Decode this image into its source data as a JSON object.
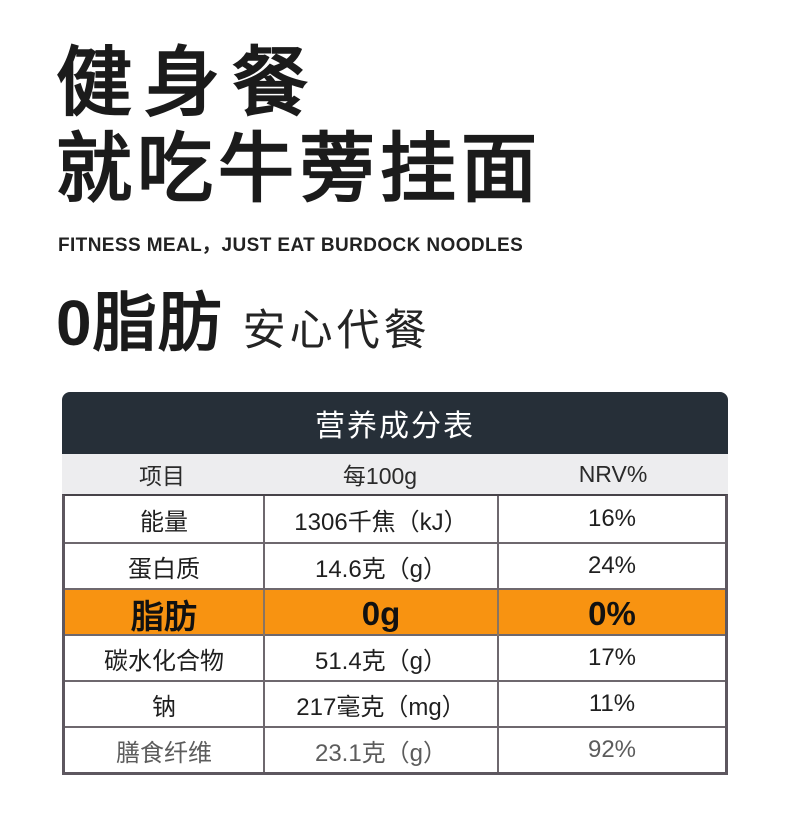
{
  "hero": {
    "title_line1": "健身餐",
    "title_line2": "就吃牛蒡挂面",
    "subtitle_en": "FITNESS MEAL，JUST EAT BURDOCK NOODLES",
    "zero_fat": "0脂肪",
    "zero_fat_sub": "安心代餐"
  },
  "nutrition_table": {
    "title": "营养成分表",
    "columns": {
      "item": "项目",
      "per": "每100g",
      "nrv": "NRV%"
    },
    "rows": [
      {
        "name": "能量",
        "per": "1306千焦（kJ）",
        "nrv": "16%"
      },
      {
        "name": "蛋白质",
        "per": "14.6克（g）",
        "nrv": "24%"
      },
      {
        "name": "脂肪",
        "per": "0g",
        "nrv": "0%"
      },
      {
        "name": "碳水化合物",
        "per": "51.4克（g）",
        "nrv": "17%"
      },
      {
        "name": "钠",
        "per": "217毫克（mg）",
        "nrv": "11%"
      },
      {
        "name": "膳食纤维",
        "per": "23.1克（g）",
        "nrv": "92%"
      }
    ],
    "colors": {
      "header_bg": "#262f38",
      "subheader_bg": "#ededef",
      "highlight_bg": "#f89311",
      "border": "#6e686e"
    }
  }
}
